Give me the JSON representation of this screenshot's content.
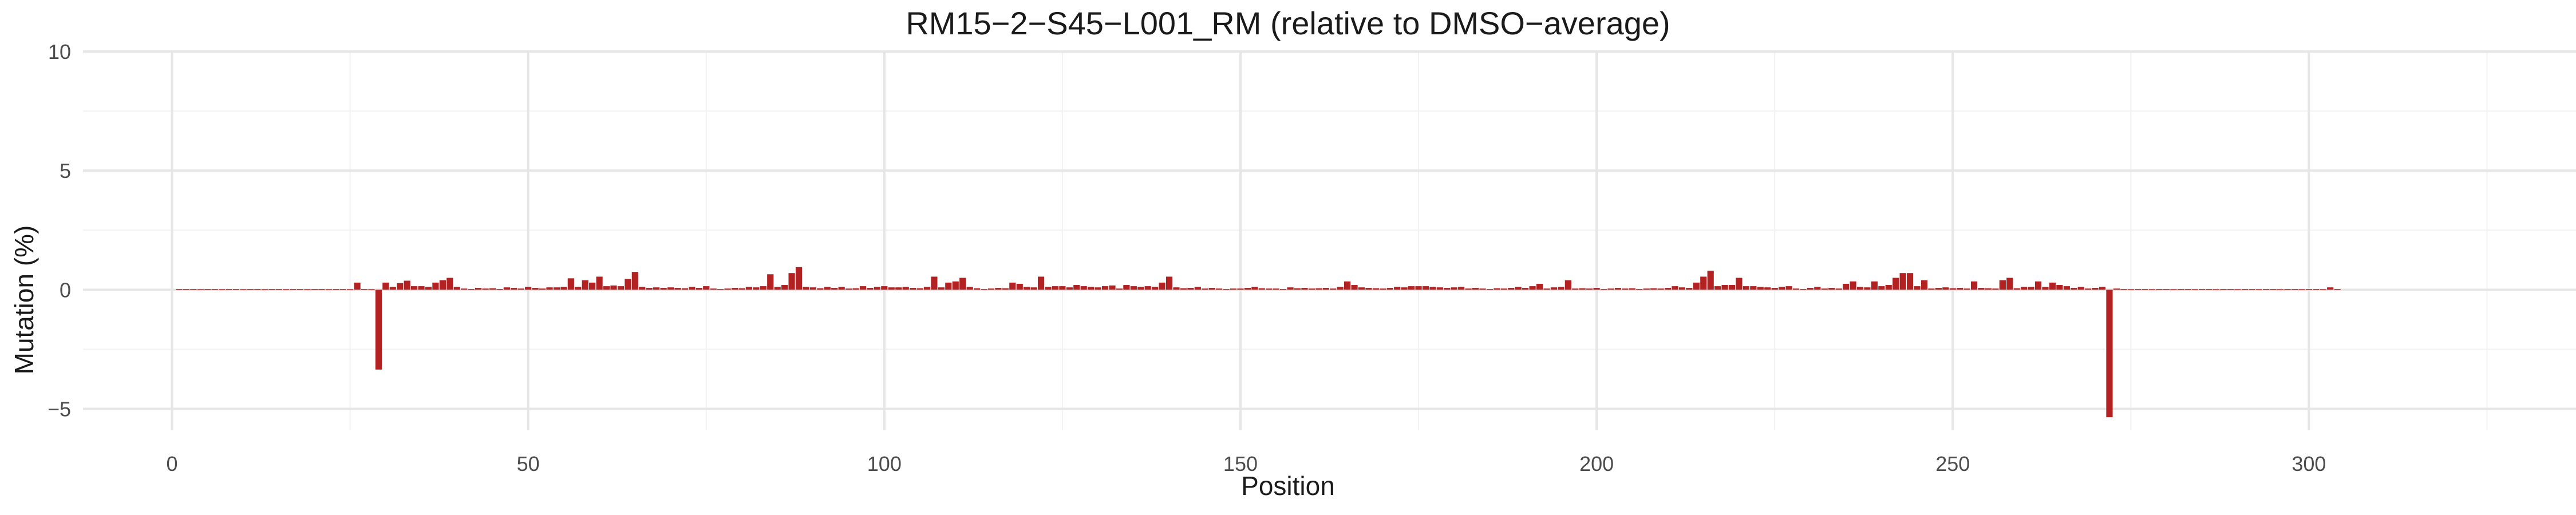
{
  "chart_data": {
    "type": "bar",
    "title": "RM15−2−S45−L001_RM (relative to DMSO−average)",
    "xlabel": "Position",
    "ylabel": "Mutation (%)",
    "xlim": [
      -12.5,
      337.5
    ],
    "ylim": [
      -5.9,
      10
    ],
    "x_ticks": [
      0,
      50,
      100,
      150,
      200,
      250,
      300
    ],
    "x_tick_labels": [
      "0",
      "50",
      "100",
      "150",
      "200",
      "250",
      "300"
    ],
    "y_ticks": [
      -5,
      0,
      5,
      10
    ],
    "y_tick_labels": [
      "−5",
      "0",
      "5",
      "10"
    ],
    "grid": true,
    "bar_color": "#B22222",
    "positions_start": 1,
    "values": [
      0.03,
      0.03,
      0.03,
      0.02,
      0.03,
      0.03,
      0.02,
      0.03,
      0.03,
      0.02,
      0.03,
      0.03,
      0.02,
      0.03,
      0.03,
      0.02,
      0.03,
      0.03,
      0.02,
      0.03,
      0.03,
      0.02,
      0.03,
      0.03,
      0.02,
      0.3,
      0.03,
      0.02,
      -3.35,
      0.3,
      0.12,
      0.28,
      0.38,
      0.15,
      0.15,
      0.12,
      0.3,
      0.4,
      0.5,
      0.12,
      0.05,
      0.03,
      0.08,
      0.05,
      0.06,
      0.03,
      0.1,
      0.08,
      0.05,
      0.12,
      0.08,
      0.05,
      0.1,
      0.1,
      0.12,
      0.48,
      0.12,
      0.4,
      0.3,
      0.55,
      0.15,
      0.18,
      0.15,
      0.45,
      0.75,
      0.12,
      0.08,
      0.1,
      0.08,
      0.1,
      0.08,
      0.06,
      0.12,
      0.08,
      0.15,
      0.05,
      0.03,
      0.05,
      0.08,
      0.06,
      0.12,
      0.1,
      0.15,
      0.65,
      0.12,
      0.2,
      0.7,
      0.95,
      0.12,
      0.1,
      0.06,
      0.12,
      0.08,
      0.12,
      0.05,
      0.06,
      0.15,
      0.08,
      0.12,
      0.15,
      0.1,
      0.1,
      0.12,
      0.08,
      0.06,
      0.12,
      0.55,
      0.1,
      0.3,
      0.35,
      0.5,
      0.12,
      0.06,
      0.03,
      0.05,
      0.08,
      0.06,
      0.3,
      0.25,
      0.12,
      0.1,
      0.55,
      0.12,
      0.15,
      0.15,
      0.1,
      0.2,
      0.15,
      0.12,
      0.1,
      0.15,
      0.18,
      0.05,
      0.2,
      0.15,
      0.12,
      0.15,
      0.12,
      0.3,
      0.55,
      0.1,
      0.06,
      0.08,
      0.12,
      0.05,
      0.08,
      0.05,
      0.03,
      0.05,
      0.05,
      0.08,
      0.12,
      0.06,
      0.05,
      0.05,
      0.03,
      0.1,
      0.06,
      0.08,
      0.05,
      0.06,
      0.08,
      0.05,
      0.12,
      0.35,
      0.2,
      0.1,
      0.08,
      0.06,
      0.05,
      0.08,
      0.12,
      0.1,
      0.15,
      0.15,
      0.15,
      0.12,
      0.1,
      0.08,
      0.1,
      0.12,
      0.05,
      0.08,
      0.05,
      0.03,
      0.06,
      0.05,
      0.08,
      0.12,
      0.08,
      0.15,
      0.25,
      0.05,
      0.1,
      0.12,
      0.4,
      0.05,
      0.06,
      0.05,
      0.08,
      0.03,
      0.05,
      0.08,
      0.05,
      0.06,
      0.03,
      0.05,
      0.06,
      0.05,
      0.08,
      0.15,
      0.1,
      0.08,
      0.3,
      0.55,
      0.8,
      0.15,
      0.2,
      0.2,
      0.5,
      0.15,
      0.15,
      0.12,
      0.1,
      0.08,
      0.12,
      0.15,
      0.05,
      0.03,
      0.08,
      0.12,
      0.05,
      0.08,
      0.05,
      0.25,
      0.35,
      0.12,
      0.1,
      0.35,
      0.15,
      0.2,
      0.5,
      0.7,
      0.7,
      0.15,
      0.4,
      0.05,
      0.08,
      0.1,
      0.06,
      0.08,
      0.05,
      0.35,
      0.08,
      0.06,
      0.05,
      0.4,
      0.5,
      0.06,
      0.12,
      0.12,
      0.35,
      0.12,
      0.3,
      0.2,
      0.15,
      0.08,
      0.12,
      0.05,
      0.08,
      0.12,
      -5.35,
      0.05,
      0.03,
      0.02,
      0.03,
      0.03,
      0.02,
      0.03,
      0.03,
      0.02,
      0.03,
      0.03,
      0.02,
      0.03,
      0.03,
      0.02,
      0.03,
      0.03,
      0.02,
      0.03,
      0.03,
      0.02,
      0.03,
      0.03,
      0.02,
      0.03,
      0.03,
      0.02,
      0.03,
      0.03,
      0.02,
      0.1,
      0.03
    ]
  }
}
